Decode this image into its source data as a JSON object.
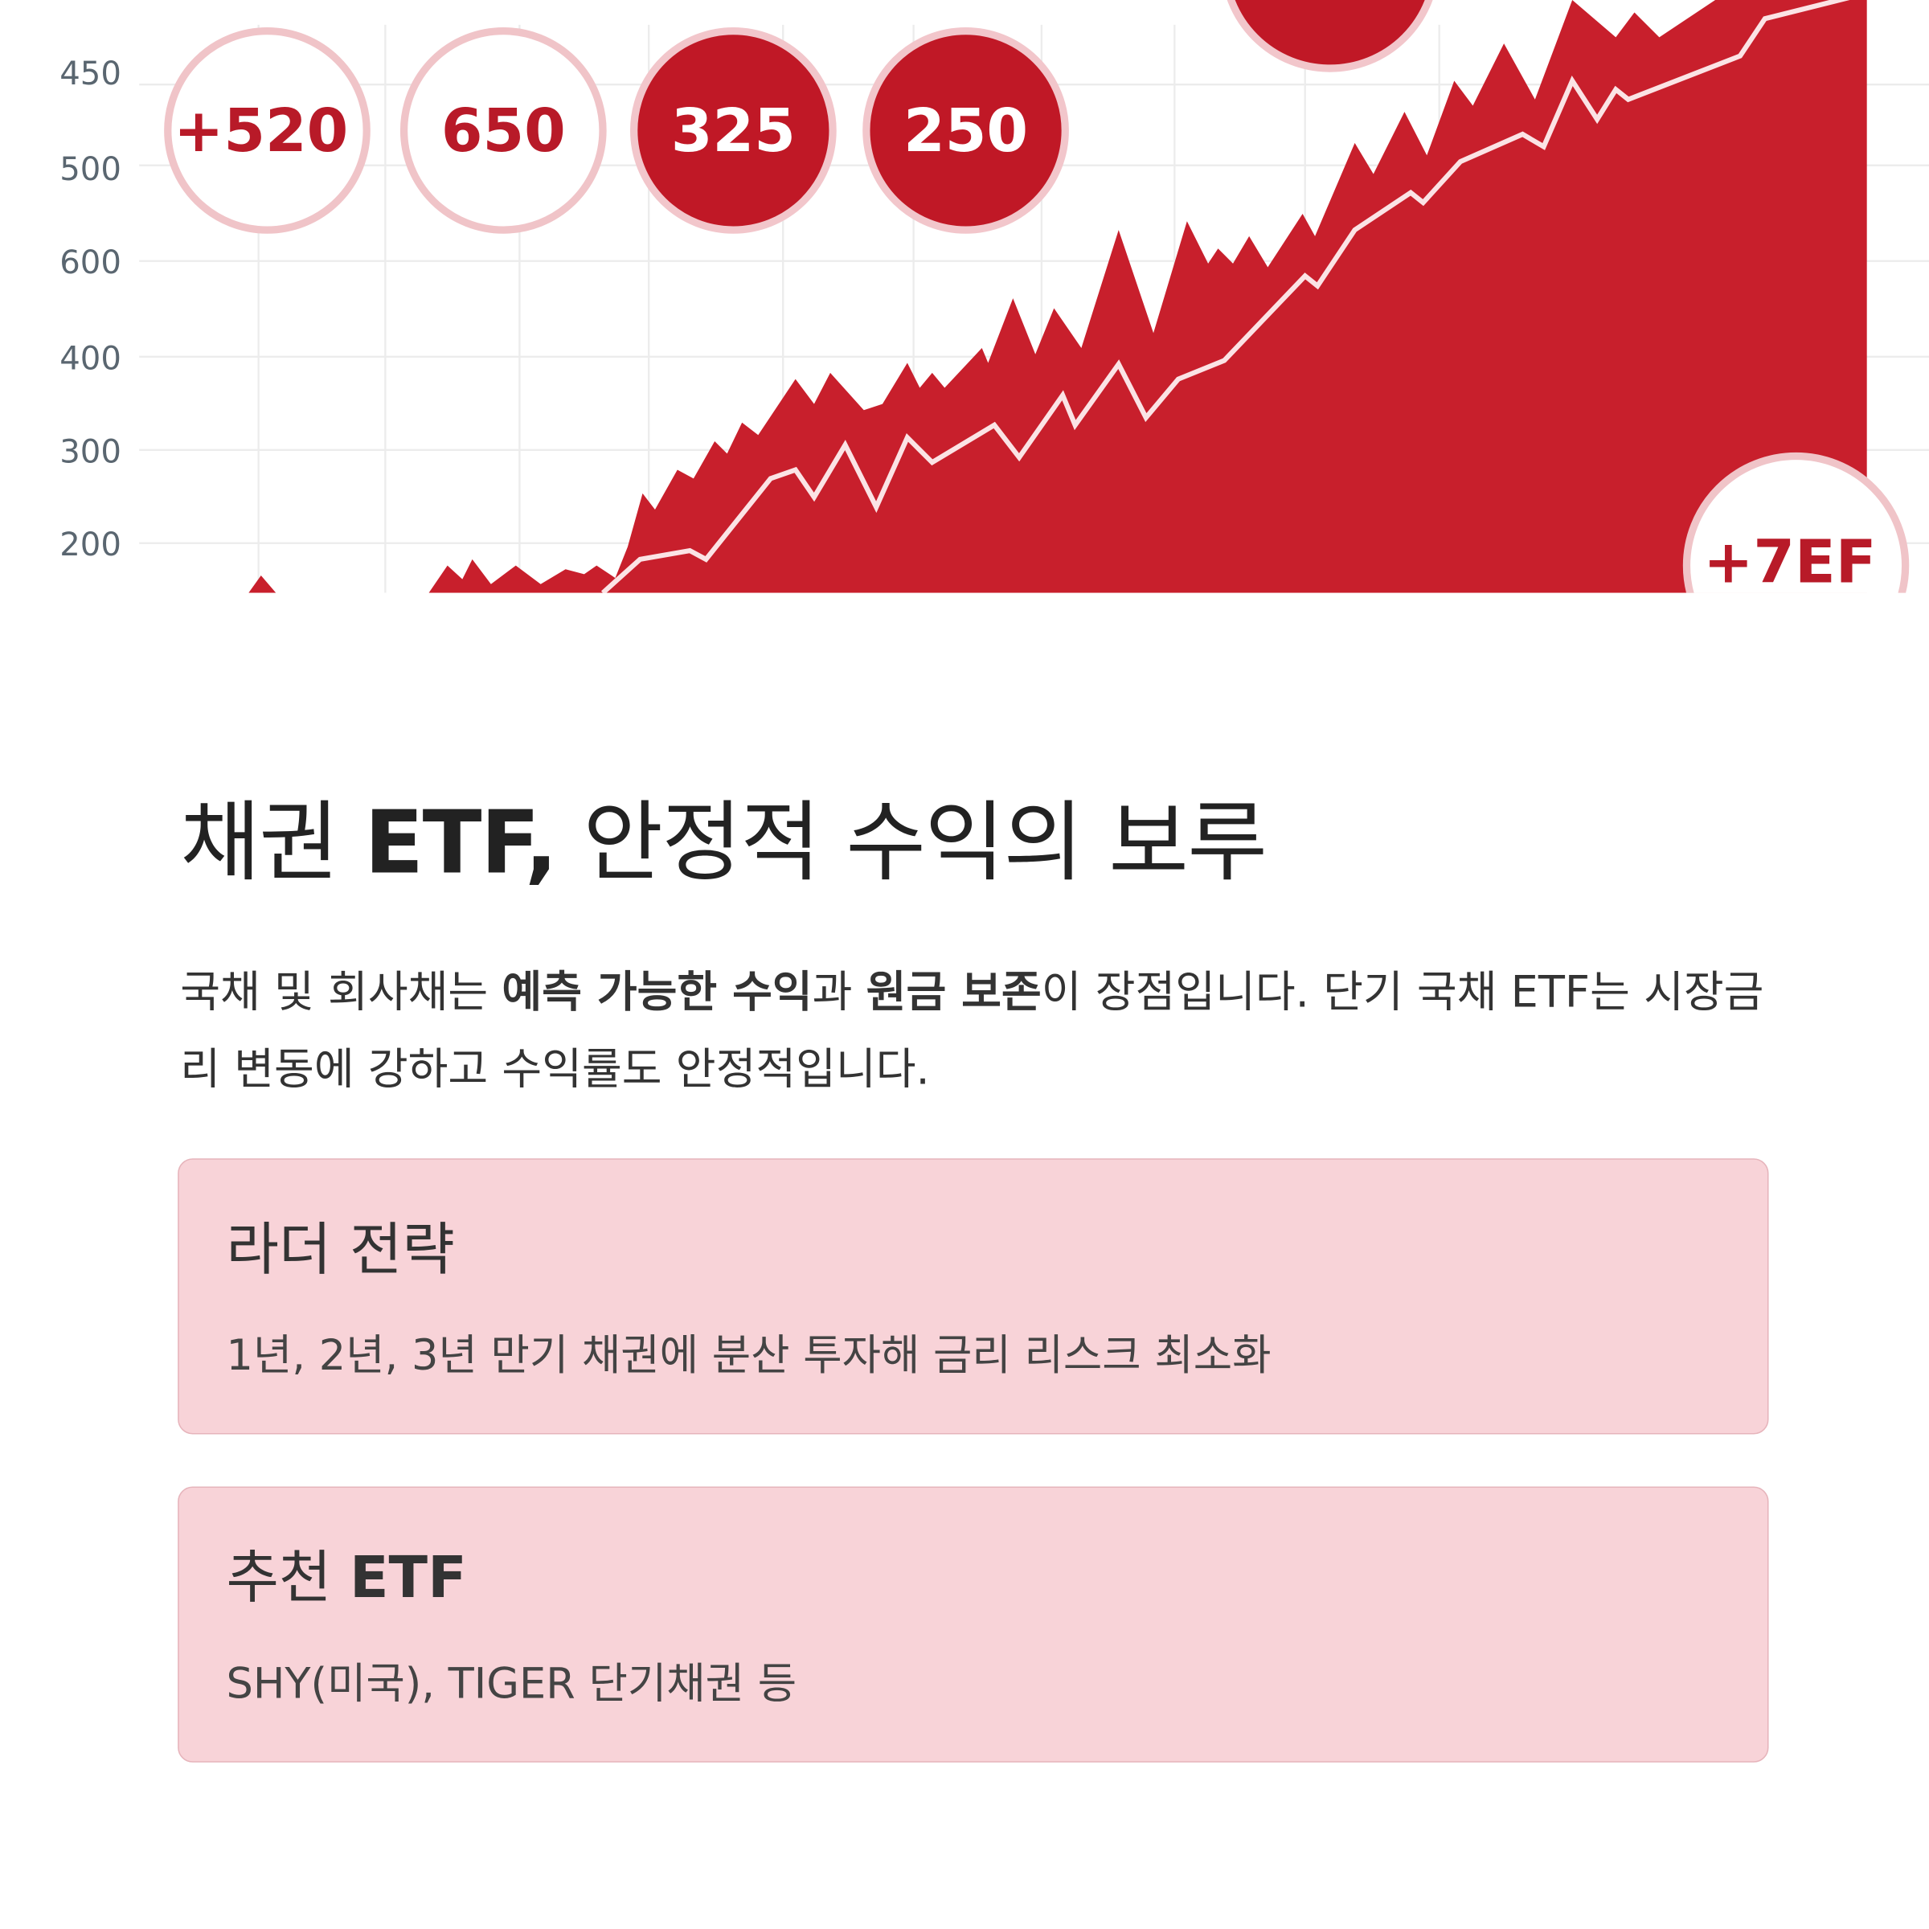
{
  "hero_image": {
    "axis_labels": [
      "450",
      "500",
      "600",
      "400",
      "300",
      "200"
    ],
    "badges": [
      "+520",
      "650",
      "325",
      "250",
      "+7EF"
    ]
  },
  "title": {
    "text_1": "채권 ",
    "bold": "ETF,",
    "text_2": " 안정적 수익의 보루"
  },
  "paragraph": {
    "text_1": "국채 및 회사채는 ",
    "bold_1": "예측 가능한 수익",
    "text_2": "과 ",
    "bold_2": "원금 보존",
    "text_3": "이 장점입니다. 단기 국채 ETF는 시장금리 변동에 강하고 수익률도 안정적입니다."
  },
  "cards": [
    {
      "title": "라더 전략",
      "body": "1년, 2년, 3년 만기 채권에 분산 투자해 금리 리스크 최소화"
    },
    {
      "title_text": "추천 ",
      "title_bold": "ETF",
      "body": "SHY(미국), TIGER 단기채권 등"
    }
  ]
}
